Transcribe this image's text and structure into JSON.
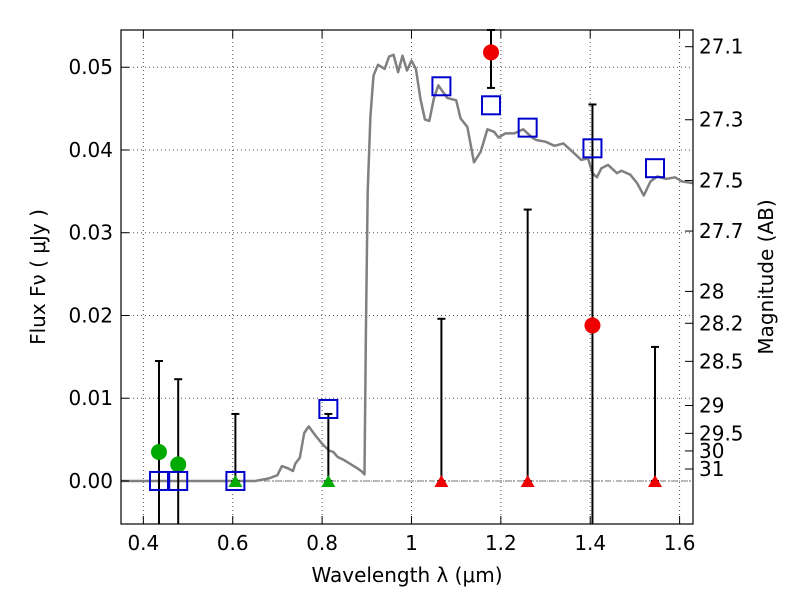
{
  "chart_data": {
    "type": "scatter",
    "xlabel": "Wavelength  λ (μm)",
    "ylabel": "Flux  Fν ( μJy )",
    "y2label": "Magnitude (AB)",
    "xlim": [
      0.35,
      1.63
    ],
    "ylim": [
      -0.0052,
      0.0545
    ],
    "grid": true,
    "x_ticks": [
      {
        "value": 0.4,
        "label": "0.4"
      },
      {
        "value": 0.6,
        "label": "0.6"
      },
      {
        "value": 0.8,
        "label": "0.8"
      },
      {
        "value": 1.0,
        "label": "1"
      },
      {
        "value": 1.2,
        "label": "1.2"
      },
      {
        "value": 1.4,
        "label": "1.4"
      },
      {
        "value": 1.6,
        "label": "1.6"
      }
    ],
    "y_ticks": [
      {
        "value": 0.0,
        "label": "0.00"
      },
      {
        "value": 0.01,
        "label": "0.01"
      },
      {
        "value": 0.02,
        "label": "0.02"
      },
      {
        "value": 0.03,
        "label": "0.03"
      },
      {
        "value": 0.04,
        "label": "0.04"
      },
      {
        "value": 0.05,
        "label": "0.05"
      }
    ],
    "mag_ticks": [
      {
        "value": 27.1,
        "label": "27.1"
      },
      {
        "value": 27.3,
        "label": "27.3"
      },
      {
        "value": 27.5,
        "label": "27.5"
      },
      {
        "value": 27.7,
        "label": "27.7"
      },
      {
        "value": 28,
        "label": "28"
      },
      {
        "value": 28.2,
        "label": "28.2"
      },
      {
        "value": 28.5,
        "label": "28.5"
      },
      {
        "value": 29,
        "label": "29"
      },
      {
        "value": 29.5,
        "label": "29.5"
      },
      {
        "value": 30,
        "label": "30"
      },
      {
        "value": 31,
        "label": "31"
      }
    ],
    "colors": {
      "model": "#808080",
      "squares": "#0000cc",
      "red": "#ee0000",
      "green": "#00aa00",
      "errorbar": "#000000",
      "grid": "#555555"
    },
    "model_sed": [
      [
        0.35,
        0.0
      ],
      [
        0.6,
        0.0
      ],
      [
        0.65,
        0.0
      ],
      [
        0.68,
        0.0003
      ],
      [
        0.7,
        0.0007
      ],
      [
        0.71,
        0.0018
      ],
      [
        0.725,
        0.0015
      ],
      [
        0.735,
        0.0012
      ],
      [
        0.74,
        0.0021
      ],
      [
        0.75,
        0.0028
      ],
      [
        0.76,
        0.0058
      ],
      [
        0.77,
        0.0066
      ],
      [
        0.785,
        0.0055
      ],
      [
        0.8,
        0.0045
      ],
      [
        0.815,
        0.0037
      ],
      [
        0.825,
        0.0035
      ],
      [
        0.835,
        0.0029
      ],
      [
        0.85,
        0.0025
      ],
      [
        0.865,
        0.002
      ],
      [
        0.88,
        0.0015
      ],
      [
        0.89,
        0.0011
      ],
      [
        0.895,
        0.0008
      ],
      [
        0.898,
        0.018
      ],
      [
        0.902,
        0.035
      ],
      [
        0.908,
        0.044
      ],
      [
        0.915,
        0.049
      ],
      [
        0.925,
        0.0503
      ],
      [
        0.94,
        0.0498
      ],
      [
        0.95,
        0.0513
      ],
      [
        0.96,
        0.0515
      ],
      [
        0.97,
        0.0494
      ],
      [
        0.98,
        0.0514
      ],
      [
        0.99,
        0.0496
      ],
      [
        1.0,
        0.0508
      ],
      [
        1.01,
        0.0498
      ],
      [
        1.02,
        0.0462
      ],
      [
        1.03,
        0.0437
      ],
      [
        1.04,
        0.0435
      ],
      [
        1.05,
        0.0462
      ],
      [
        1.06,
        0.0478
      ],
      [
        1.08,
        0.0463
      ],
      [
        1.1,
        0.046
      ],
      [
        1.11,
        0.0438
      ],
      [
        1.125,
        0.0428
      ],
      [
        1.14,
        0.0385
      ],
      [
        1.155,
        0.0398
      ],
      [
        1.17,
        0.0425
      ],
      [
        1.185,
        0.0422
      ],
      [
        1.195,
        0.0415
      ],
      [
        1.21,
        0.042
      ],
      [
        1.23,
        0.042
      ],
      [
        1.25,
        0.0425
      ],
      [
        1.27,
        0.0415
      ],
      [
        1.28,
        0.0412
      ],
      [
        1.3,
        0.041
      ],
      [
        1.32,
        0.0405
      ],
      [
        1.34,
        0.0408
      ],
      [
        1.36,
        0.0398
      ],
      [
        1.38,
        0.0388
      ],
      [
        1.395,
        0.039
      ],
      [
        1.405,
        0.0372
      ],
      [
        1.415,
        0.0367
      ],
      [
        1.425,
        0.0378
      ],
      [
        1.44,
        0.0382
      ],
      [
        1.46,
        0.0372
      ],
      [
        1.47,
        0.0375
      ],
      [
        1.49,
        0.037
      ],
      [
        1.505,
        0.036
      ],
      [
        1.52,
        0.0345
      ],
      [
        1.535,
        0.0362
      ],
      [
        1.55,
        0.0368
      ],
      [
        1.57,
        0.0365
      ],
      [
        1.59,
        0.0367
      ],
      [
        1.605,
        0.0362
      ],
      [
        1.63,
        0.036
      ]
    ],
    "model_photometry": [
      {
        "x": 0.435,
        "y": 0.0
      },
      {
        "x": 0.478,
        "y": 0.0
      },
      {
        "x": 0.606,
        "y": 0.0
      },
      {
        "x": 0.814,
        "y": 0.0087
      },
      {
        "x": 1.067,
        "y": 0.0477
      },
      {
        "x": 1.178,
        "y": 0.0454
      },
      {
        "x": 1.26,
        "y": 0.0427
      },
      {
        "x": 1.405,
        "y": 0.0402
      },
      {
        "x": 1.545,
        "y": 0.0378
      }
    ],
    "observed_detections": [
      {
        "x": 0.435,
        "y": 0.0035,
        "color": "green",
        "err_low": -0.0052,
        "err_high": 0.0145
      },
      {
        "x": 0.478,
        "y": 0.002,
        "color": "green",
        "err_low": -0.0052,
        "err_high": 0.0123
      },
      {
        "x": 1.178,
        "y": 0.0518,
        "color": "red",
        "err_low": 0.0475,
        "err_high": 0.0545
      },
      {
        "x": 1.405,
        "y": 0.0188,
        "color": "red",
        "err_low": -0.0052,
        "err_high": 0.0455
      }
    ],
    "upper_limits": [
      {
        "x": 0.606,
        "y": 0.0,
        "color": "green",
        "err_high": 0.0081
      },
      {
        "x": 0.814,
        "y": 0.0,
        "color": "green",
        "err_high": 0.0081
      },
      {
        "x": 1.067,
        "y": 0.0,
        "color": "red",
        "err_high": 0.0196
      },
      {
        "x": 1.26,
        "y": 0.0,
        "color": "red",
        "err_high": 0.0328
      },
      {
        "x": 1.545,
        "y": 0.0,
        "color": "red",
        "err_high": 0.0162
      }
    ]
  }
}
